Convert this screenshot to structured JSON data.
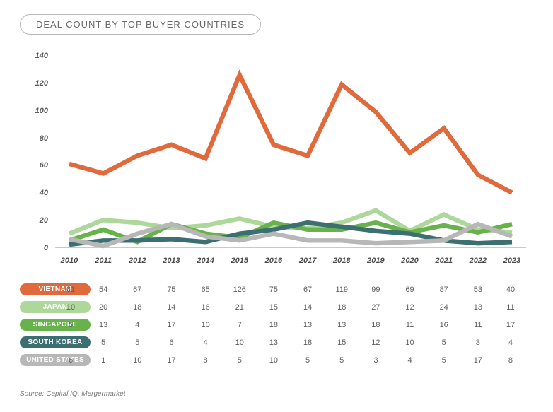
{
  "title": "DEAL COUNT BY TOP BUYER COUNTRIES",
  "source": "Source: Capital IQ, Mergermarket",
  "chart": {
    "type": "line",
    "background_color": "#ffffff",
    "years": [
      "2010",
      "2011",
      "2012",
      "2013",
      "2014",
      "2015",
      "2016",
      "2017",
      "2018",
      "2019",
      "2020",
      "2021",
      "2022",
      "2023"
    ],
    "ylim": [
      0,
      140
    ],
    "ytick_step": 20,
    "yticks": [
      0,
      20,
      40,
      60,
      80,
      100,
      120,
      140
    ],
    "axis_color": "#c9c9c9",
    "tick_font_size": 11,
    "tick_font_style": "italic",
    "x_tick_weight": 700,
    "line_width": 1.6,
    "series": [
      {
        "name": "VIETNAM",
        "color": "#e06a3b",
        "pill_text": "#ffffff",
        "values": [
          61,
          54,
          67,
          75,
          65,
          126,
          75,
          67,
          119,
          99,
          69,
          87,
          53,
          40
        ]
      },
      {
        "name": "JAPAN",
        "color": "#aed89b",
        "pill_text": "#ffffff",
        "values": [
          10,
          20,
          18,
          14,
          16,
          21,
          15,
          14,
          18,
          27,
          12,
          24,
          13,
          11
        ]
      },
      {
        "name": "SINGAPORE",
        "color": "#67b24a",
        "pill_text": "#ffffff",
        "values": [
          5,
          13,
          4,
          17,
          10,
          7,
          18,
          13,
          13,
          18,
          11,
          16,
          11,
          17
        ]
      },
      {
        "name": "SOUTH KOREA",
        "color": "#3c6f72",
        "pill_text": "#ffffff",
        "values": [
          2,
          5,
          5,
          6,
          4,
          10,
          13,
          18,
          15,
          12,
          10,
          5,
          3,
          4
        ]
      },
      {
        "name": "UNITED STATES",
        "color": "#b7b7b7",
        "pill_text": "#ffffff",
        "values": [
          6,
          1,
          10,
          17,
          8,
          5,
          10,
          5,
          5,
          3,
          4,
          5,
          17,
          8
        ]
      }
    ]
  }
}
